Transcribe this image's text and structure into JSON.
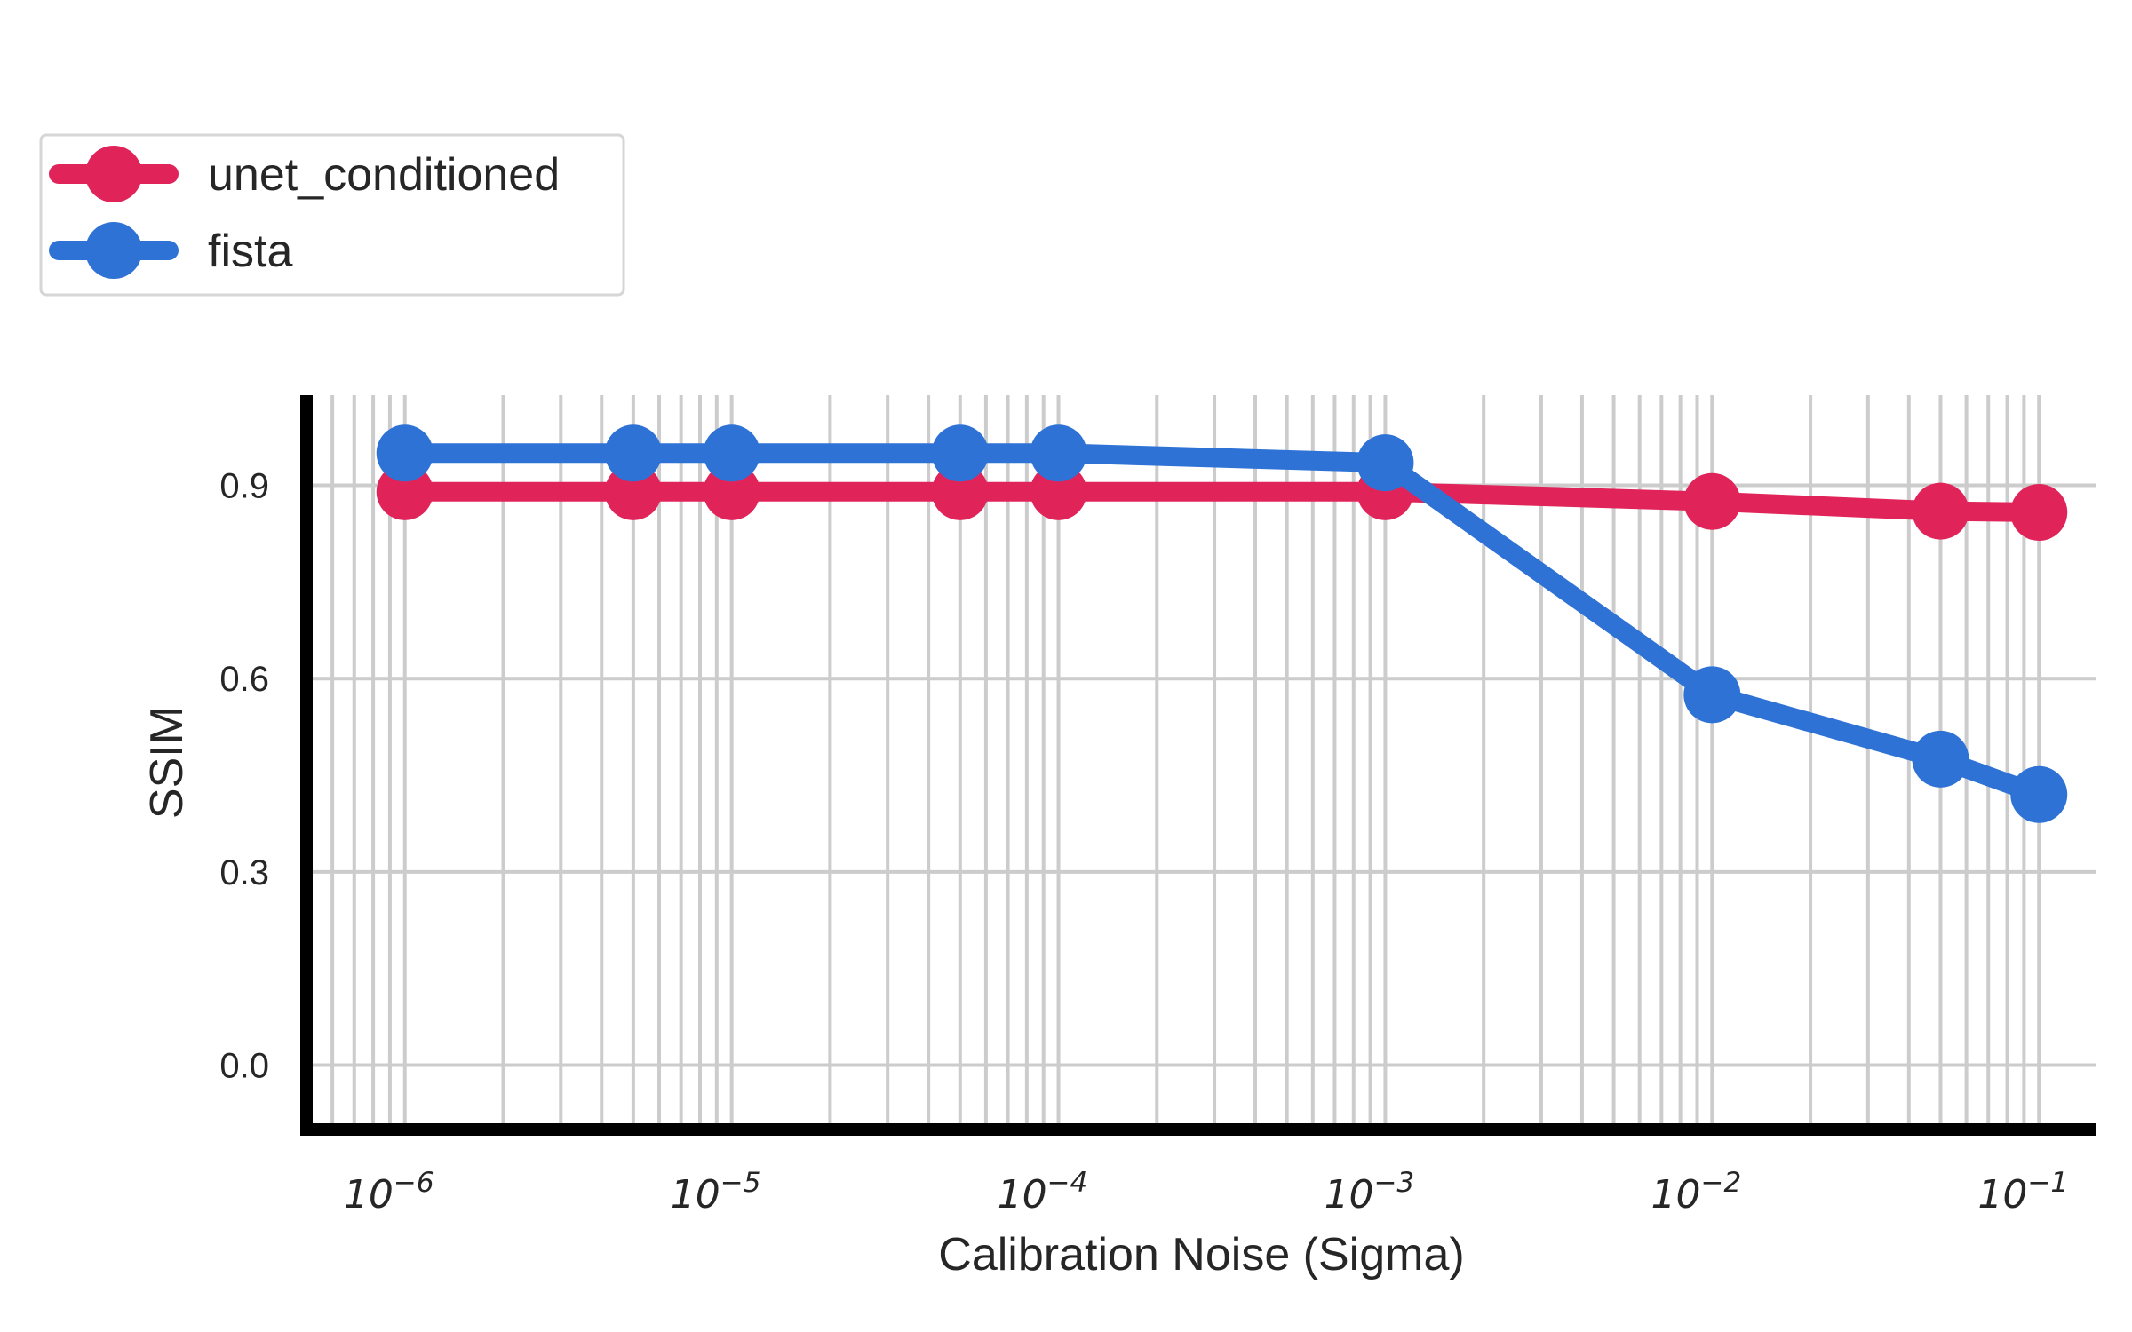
{
  "chart_data": {
    "type": "line",
    "xlabel": "Calibration Noise (Sigma)",
    "ylabel": "SSIM",
    "xscale": "log",
    "xlim": [
      5e-07,
      0.15
    ],
    "ylim": [
      -0.1,
      1.04
    ],
    "grid": true,
    "legend_position": "top-left (outside plot area)",
    "x_ticks": [
      {
        "value": 1e-06,
        "base": "10",
        "exp": "−6"
      },
      {
        "value": 1e-05,
        "base": "10",
        "exp": "−5"
      },
      {
        "value": 0.0001,
        "base": "10",
        "exp": "−4"
      },
      {
        "value": 0.001,
        "base": "10",
        "exp": "−3"
      },
      {
        "value": 0.01,
        "base": "10",
        "exp": "−2"
      },
      {
        "value": 0.1,
        "base": "10",
        "exp": "−1"
      }
    ],
    "y_ticks": [
      {
        "value": 0.0,
        "label": "0.0"
      },
      {
        "value": 0.3,
        "label": "0.3"
      },
      {
        "value": 0.6,
        "label": "0.6"
      },
      {
        "value": 0.9,
        "label": "0.9"
      }
    ],
    "x": [
      1e-06,
      5e-06,
      1e-05,
      5e-05,
      0.0001,
      0.001,
      0.01,
      0.05,
      0.1
    ],
    "series": [
      {
        "name": "unet_conditioned",
        "color": "#e0245a",
        "values": [
          0.89,
          0.89,
          0.89,
          0.89,
          0.89,
          0.89,
          0.875,
          0.86,
          0.858
        ]
      },
      {
        "name": "fista",
        "color": "#2e72d6",
        "values": [
          0.95,
          0.95,
          0.95,
          0.95,
          0.95,
          0.935,
          0.575,
          0.475,
          0.42
        ]
      }
    ]
  }
}
